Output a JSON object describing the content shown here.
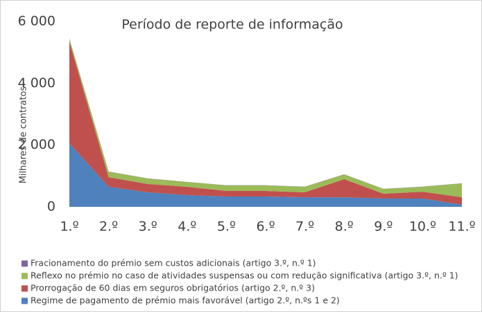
{
  "chart_data": {
    "type": "stacked-area",
    "title": "Período de reporte de informação",
    "y_label": "Milhares de contratos",
    "categories": [
      "1.º",
      "2.º",
      "3.º",
      "4.º",
      "5.º",
      "6.º",
      "7.º",
      "8.º",
      "9.º",
      "10.º",
      "11.º"
    ],
    "series": [
      {
        "name": "Fracionamento do prémio sem custos adicionais (artigo 3.º, n.º 1)",
        "color": "#8064a2",
        "values": [
          10,
          5,
          5,
          5,
          5,
          5,
          5,
          5,
          5,
          5,
          5
        ]
      },
      {
        "name": "Reflexo no prémio no caso de atividades suspensas ou com redução significativa (artigo 3.º, n.º 1)",
        "color": "#9bbb59",
        "values": [
          90,
          180,
          175,
          155,
          180,
          180,
          180,
          155,
          155,
          160,
          450
        ]
      },
      {
        "name": "Prorrogação de 60 dias em seguros obrigatórios (artigo 2.º, n.º 3)",
        "color": "#c0504d",
        "values": [
          3290,
          310,
          270,
          270,
          180,
          180,
          160,
          585,
          155,
          220,
          240
        ]
      },
      {
        "name": "Regime de pagamento de prémio mais favorável (artigo 2.º, n.ºs 1 e 2)",
        "color": "#4f81bd",
        "values": [
          2060,
          650,
          470,
          380,
          335,
          335,
          310,
          310,
          270,
          270,
          70
        ]
      }
    ],
    "ylim": [
      0,
      6000
    ],
    "yticks": [
      {
        "value": 0,
        "label": "0"
      },
      {
        "value": 2000,
        "label": "2 000"
      },
      {
        "value": 4000,
        "label": "4 000"
      },
      {
        "value": 6000,
        "label": "6 000"
      }
    ]
  }
}
